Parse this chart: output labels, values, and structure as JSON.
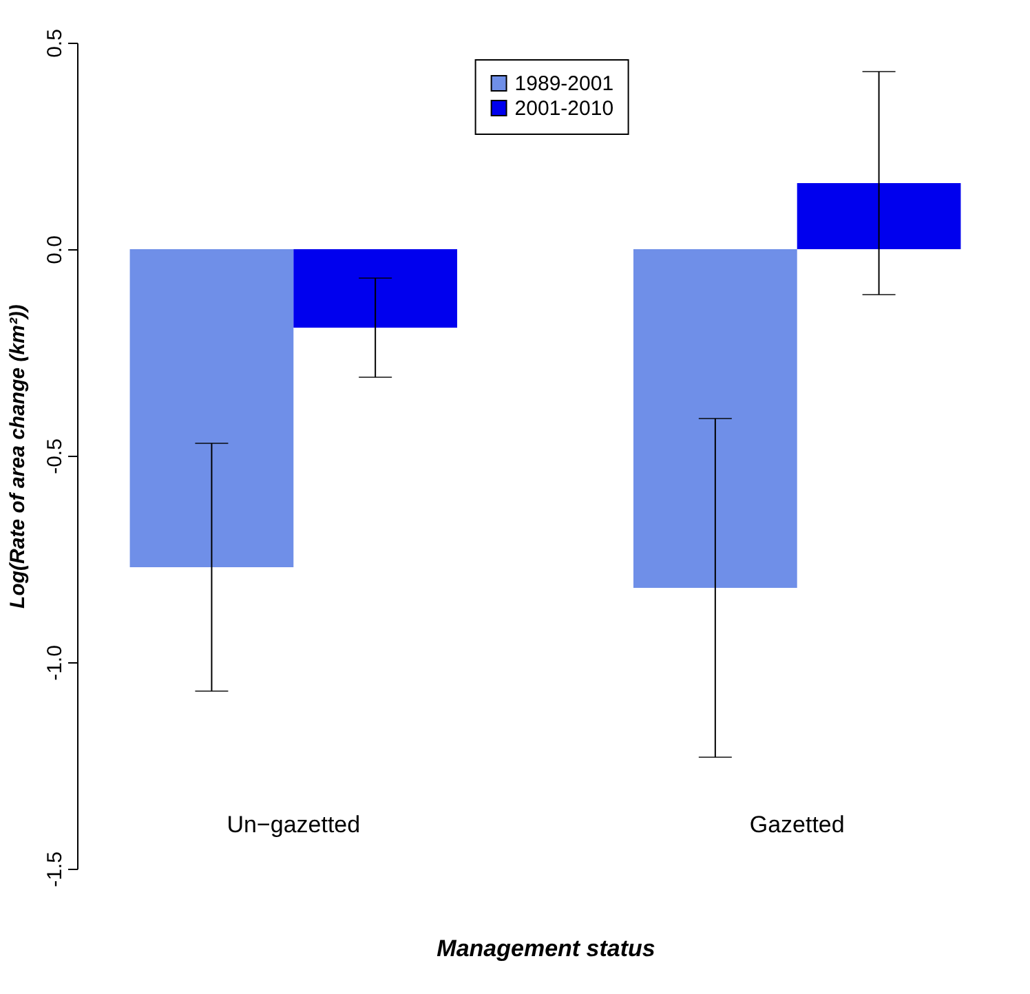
{
  "chart_data": {
    "type": "bar",
    "xlabel": "Management status",
    "ylabel": "Log(Rate of area change (km²))",
    "categories": [
      "Un−gazetted",
      "Gazetted"
    ],
    "series": [
      {
        "name": "1989-2001",
        "color": "#6f8fe8",
        "values": [
          -0.77,
          -0.82
        ],
        "errors": [
          0.3,
          0.41
        ]
      },
      {
        "name": "2001-2010",
        "color": "#0000ee",
        "values": [
          -0.19,
          0.16
        ],
        "errors": [
          0.12,
          0.27
        ]
      }
    ],
    "ylim": [
      -1.5,
      0.5
    ],
    "yticks": [
      {
        "value": -1.5,
        "label": "-1.5"
      },
      {
        "value": -1,
        "label": "-1.0"
      },
      {
        "value": -0.5,
        "label": "-0.5"
      },
      {
        "value": 0,
        "label": "0.0"
      },
      {
        "value": 0.5,
        "label": "0.5"
      }
    ],
    "legend": "top",
    "grid": false
  }
}
